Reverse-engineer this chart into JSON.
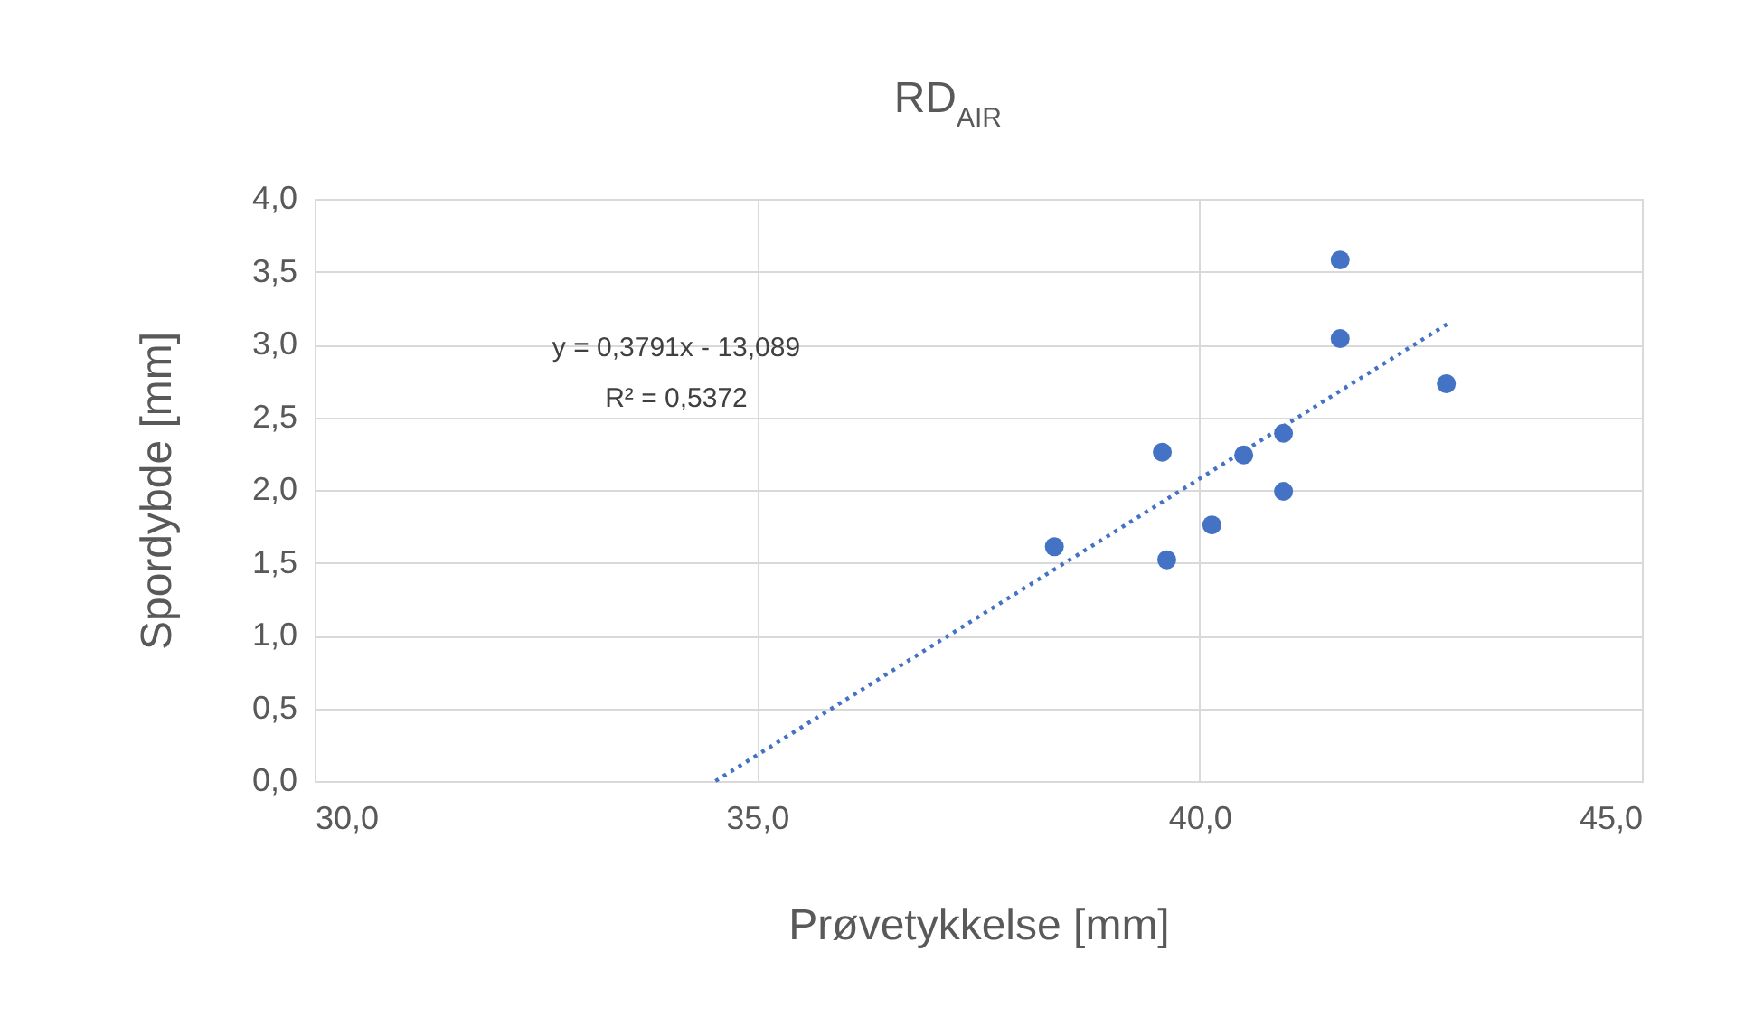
{
  "chart_data": {
    "type": "scatter",
    "title": "RD$_{AIR}$",
    "xlabel": "Prøvetykkelse [mm]",
    "ylabel": "Spordybde [mm]",
    "x": [
      38.36,
      39.58,
      39.63,
      40.14,
      40.5,
      40.95,
      40.95,
      41.59,
      41.59,
      42.79
    ],
    "series": [
      {
        "color": "#4472c4",
        "marker": "circle",
        "values": [
          1.61,
          2.26,
          1.52,
          1.76,
          2.24,
          2.39,
          1.99,
          3.58,
          3.04,
          2.73
        ]
      },
      {
        "type": "line",
        "color": "#4472c4",
        "line_style": "dotted",
        "marker": "none",
        "x": [
          34.53,
          42.8
        ],
        "values": [
          0,
          3.14
        ]
      }
    ],
    "xlim": [
      30,
      45
    ],
    "ylim": [
      0,
      4
    ],
    "xticks": [
      {
        "value": 30,
        "label": "30,0"
      },
      {
        "value": 35,
        "label": "35,0"
      },
      {
        "value": 40,
        "label": "40,0"
      },
      {
        "value": 45,
        "label": "45,0"
      }
    ],
    "yticks": [
      {
        "value": 0,
        "label": "0,0"
      },
      {
        "value": 0.5,
        "label": "0,5"
      },
      {
        "value": 1,
        "label": "1,0"
      },
      {
        "value": 1.5,
        "label": "1,5"
      },
      {
        "value": 2,
        "label": "2,0"
      },
      {
        "value": 2.5,
        "label": "2,5"
      },
      {
        "value": 3,
        "label": "3,0"
      },
      {
        "value": 3.5,
        "label": "3,5"
      },
      {
        "value": 4,
        "label": "4,0"
      }
    ],
    "annotations": [
      "y = 0,3791x - 13,089",
      "R² = 0,5372"
    ],
    "grid": true
  }
}
